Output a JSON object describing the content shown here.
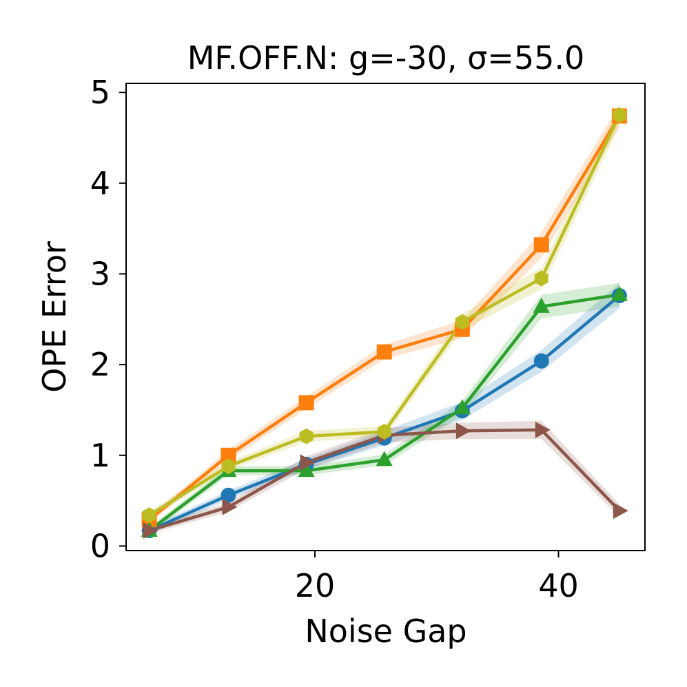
{
  "chart_data": {
    "type": "line",
    "title": "MF.OFF.N: g=-30, σ=55.0",
    "xlabel": "Noise Gap",
    "ylabel": "OPE Error",
    "xlim": [
      4.5,
      47.1
    ],
    "ylim": [
      -0.05,
      5.1
    ],
    "xticks": [
      20,
      40
    ],
    "xtick_labels": [
      "20",
      "40"
    ],
    "yticks": [
      0,
      1,
      2,
      3,
      4,
      5
    ],
    "ytick_labels": [
      "0",
      "1",
      "2",
      "3",
      "4",
      "5"
    ],
    "grid": false,
    "x": [
      6.4,
      12.9,
      19.3,
      25.7,
      32.1,
      38.6,
      45.0
    ],
    "series": [
      {
        "name": "blue",
        "color": "#1f77b4",
        "marker": "circle",
        "values": [
          0.17,
          0.56,
          0.9,
          1.19,
          1.49,
          2.04,
          2.76
        ],
        "band": [
          0.04,
          0.05,
          0.06,
          0.08,
          0.1,
          0.12,
          0.14
        ]
      },
      {
        "name": "orange",
        "color": "#ff7f0e",
        "marker": "square",
        "values": [
          0.29,
          1.0,
          1.58,
          2.14,
          2.39,
          3.32,
          4.74
        ],
        "band": [
          0.04,
          0.06,
          0.07,
          0.08,
          0.1,
          0.14,
          0.12
        ]
      },
      {
        "name": "green",
        "color": "#2ca02c",
        "marker": "triangle-up",
        "values": [
          0.17,
          0.83,
          0.83,
          0.95,
          1.52,
          2.64,
          2.77
        ],
        "band": [
          0.04,
          0.05,
          0.05,
          0.06,
          0.08,
          0.13,
          0.13
        ]
      },
      {
        "name": "brown",
        "color": "#8c564b",
        "marker": "triangle-right",
        "values": [
          0.17,
          0.43,
          0.92,
          1.22,
          1.27,
          1.28,
          0.39
        ],
        "band": [
          0.04,
          0.05,
          0.07,
          0.08,
          0.09,
          0.1,
          0.07
        ]
      },
      {
        "name": "olive",
        "color": "#bcbd22",
        "marker": "hexagon",
        "values": [
          0.34,
          0.88,
          1.21,
          1.26,
          2.47,
          2.95,
          4.75
        ],
        "band": [
          0.04,
          0.05,
          0.06,
          0.06,
          0.09,
          0.12,
          0.12
        ]
      }
    ]
  }
}
